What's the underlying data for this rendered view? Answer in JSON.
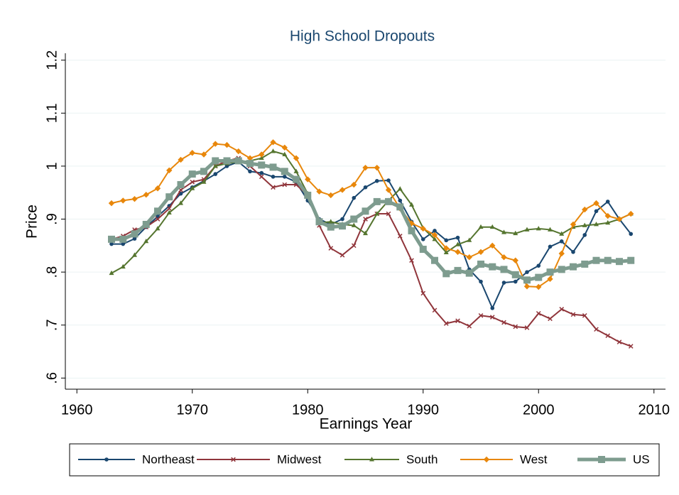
{
  "chart_data": {
    "type": "line",
    "title": "High School Dropouts",
    "x_label": "Earnings Year",
    "y_label": "Price",
    "x": [
      1963,
      1964,
      1965,
      1966,
      1967,
      1968,
      1969,
      1970,
      1971,
      1972,
      1973,
      1974,
      1975,
      1976,
      1977,
      1978,
      1979,
      1980,
      1981,
      1982,
      1983,
      1984,
      1985,
      1986,
      1987,
      1988,
      1989,
      1990,
      1991,
      1992,
      1993,
      1994,
      1995,
      1996,
      1997,
      1998,
      1999,
      2000,
      2001,
      2002,
      2003,
      2004,
      2005,
      2006,
      2007,
      2008
    ],
    "series": [
      {
        "name": "Northeast",
        "color": "#1a476f",
        "marker": "circle",
        "line_width": 2,
        "values": [
          0.853,
          0.853,
          0.863,
          0.885,
          0.905,
          0.925,
          0.948,
          0.96,
          0.972,
          0.985,
          1.0,
          1.008,
          0.99,
          0.987,
          0.98,
          0.98,
          0.97,
          0.935,
          0.9,
          0.89,
          0.9,
          0.94,
          0.96,
          0.972,
          0.973,
          0.935,
          0.895,
          0.862,
          0.878,
          0.86,
          0.865,
          0.805,
          0.782,
          0.732,
          0.78,
          0.782,
          0.8,
          0.812,
          0.848,
          0.858,
          0.838,
          0.87,
          0.915,
          0.933,
          0.9,
          0.872
        ]
      },
      {
        "name": "Midwest",
        "color": "#90353b",
        "marker": "x",
        "line_width": 2,
        "values": [
          0.862,
          0.868,
          0.88,
          0.885,
          0.9,
          0.92,
          0.955,
          0.97,
          0.975,
          1.0,
          1.01,
          1.015,
          1.0,
          0.98,
          0.96,
          0.965,
          0.965,
          0.945,
          0.888,
          0.845,
          0.832,
          0.85,
          0.9,
          0.91,
          0.91,
          0.868,
          0.822,
          0.76,
          0.728,
          0.703,
          0.708,
          0.698,
          0.718,
          0.715,
          0.705,
          0.697,
          0.695,
          0.722,
          0.712,
          0.73,
          0.72,
          0.718,
          0.692,
          0.68,
          0.668,
          0.66
        ]
      },
      {
        "name": "South",
        "color": "#55752f",
        "marker": "triangle",
        "line_width": 2,
        "values": [
          0.798,
          0.81,
          0.832,
          0.858,
          0.882,
          0.912,
          0.93,
          0.958,
          0.97,
          1.0,
          1.005,
          1.008,
          1.01,
          1.015,
          1.028,
          1.022,
          0.99,
          0.948,
          0.893,
          0.895,
          0.89,
          0.888,
          0.873,
          0.91,
          0.935,
          0.957,
          0.927,
          0.883,
          0.862,
          0.837,
          0.852,
          0.86,
          0.885,
          0.885,
          0.875,
          0.873,
          0.88,
          0.882,
          0.88,
          0.872,
          0.885,
          0.888,
          0.89,
          0.893,
          0.9,
          0.91
        ]
      },
      {
        "name": "West",
        "color": "#e8870b",
        "marker": "diamond",
        "line_width": 2,
        "values": [
          0.93,
          0.935,
          0.938,
          0.946,
          0.958,
          0.992,
          1.012,
          1.025,
          1.022,
          1.042,
          1.04,
          1.028,
          1.015,
          1.022,
          1.045,
          1.035,
          1.015,
          0.975,
          0.952,
          0.945,
          0.955,
          0.965,
          0.997,
          0.997,
          0.955,
          0.92,
          0.892,
          0.882,
          0.87,
          0.845,
          0.838,
          0.828,
          0.838,
          0.85,
          0.828,
          0.822,
          0.773,
          0.772,
          0.787,
          0.835,
          0.89,
          0.918,
          0.93,
          0.906,
          0.9,
          0.91
        ]
      },
      {
        "name": "US",
        "color": "#7e9c8f",
        "marker": "square",
        "line_width": 5,
        "values": [
          0.862,
          0.862,
          0.872,
          0.89,
          0.915,
          0.942,
          0.965,
          0.985,
          0.99,
          1.01,
          1.01,
          1.01,
          1.005,
          1.002,
          0.998,
          0.99,
          0.975,
          0.945,
          0.895,
          0.885,
          0.887,
          0.9,
          0.915,
          0.933,
          0.933,
          0.923,
          0.878,
          0.843,
          0.822,
          0.797,
          0.803,
          0.798,
          0.815,
          0.81,
          0.805,
          0.795,
          0.785,
          0.79,
          0.8,
          0.805,
          0.81,
          0.815,
          0.822,
          0.822,
          0.82,
          0.822
        ]
      }
    ],
    "xlim": [
      1959,
      2011
    ],
    "xticks": [
      1960,
      1970,
      1980,
      1990,
      2000,
      2010
    ],
    "ylim": [
      0.579,
      1.213
    ],
    "yticks": [
      {
        "value": 0.6,
        "label": ".6"
      },
      {
        "value": 0.7,
        "label": ".7"
      },
      {
        "value": 0.8,
        "label": ".8"
      },
      {
        "value": 0.9,
        "label": ".9"
      },
      1,
      1.1,
      1.2
    ],
    "grid": true,
    "legend": "bottom"
  }
}
